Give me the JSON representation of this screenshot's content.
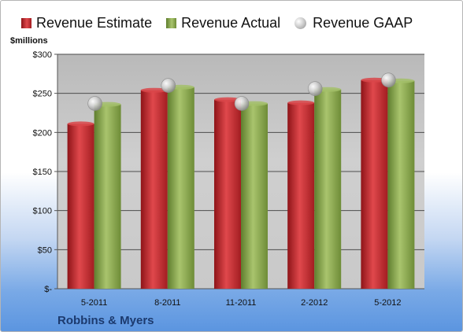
{
  "chart_data": {
    "type": "bar",
    "ylabel": "$millions",
    "company": "Robbins & Myers",
    "categories": [
      "5-2011",
      "8-2011",
      "11-2011",
      "2-2012",
      "5-2012"
    ],
    "series": [
      {
        "name": "Revenue Estimate",
        "kind": "bar",
        "color": "#c0282c",
        "values": [
          211,
          254,
          242,
          238,
          267
        ]
      },
      {
        "name": "Revenue Actual",
        "kind": "bar",
        "color": "#8cab52",
        "values": [
          236,
          258,
          237,
          255,
          266
        ]
      },
      {
        "name": "Revenue GAAP",
        "kind": "marker",
        "color": "#c8c8c8",
        "values": [
          237,
          260,
          237,
          256,
          267
        ]
      }
    ],
    "yticks": [
      0,
      50,
      100,
      150,
      200,
      250,
      300
    ],
    "ytick_labels": [
      "$-",
      "$50",
      "$100",
      "$150",
      "$200",
      "$250",
      "$300"
    ],
    "ylim": [
      0,
      300
    ],
    "grid": true,
    "legend": "top"
  }
}
